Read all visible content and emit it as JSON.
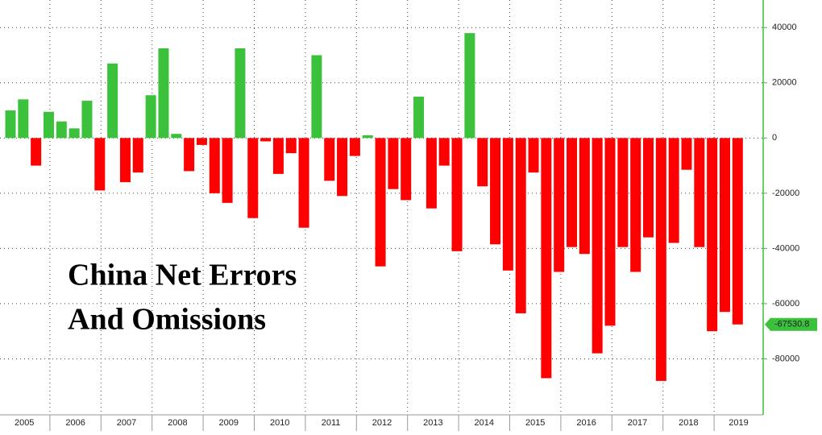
{
  "chart_data": {
    "type": "bar",
    "title": "China Net Errors And Omissions",
    "title_lines": [
      "China Net Errors",
      "And Omissions"
    ],
    "years": [
      "2005",
      "2006",
      "2007",
      "2008",
      "2009",
      "2010",
      "2011",
      "2012",
      "2013",
      "2014",
      "2015",
      "2016",
      "2017",
      "2018",
      "2019"
    ],
    "values": [
      10000,
      14000,
      -10000,
      9500,
      6000,
      3500,
      13500,
      -19000,
      27000,
      -16000,
      -12500,
      15500,
      32500,
      1500,
      -12000,
      -2500,
      -20000,
      -23500,
      32500,
      -29000,
      -1200,
      -13000,
      -5500,
      -32500,
      30000,
      -15500,
      -21000,
      -6500,
      1000,
      -46500,
      -18500,
      -22500,
      15000,
      -25500,
      -10000,
      -41000,
      38000,
      -17500,
      -38500,
      -48000,
      -63500,
      -12500,
      -87000,
      -48500,
      -39500,
      -42000,
      -78000,
      -68000,
      -39500,
      -48500,
      -36000,
      -88000,
      -38000,
      -11500,
      -39500,
      -70000,
      -63000,
      -67530.8
    ],
    "positive_color": "#3cc13c",
    "negative_color": "#ff0000",
    "ylim": [
      -100000,
      50000
    ],
    "yticks": [
      40000,
      20000,
      0,
      -20000,
      -40000,
      -60000,
      -80000
    ],
    "grid": true
  }
}
